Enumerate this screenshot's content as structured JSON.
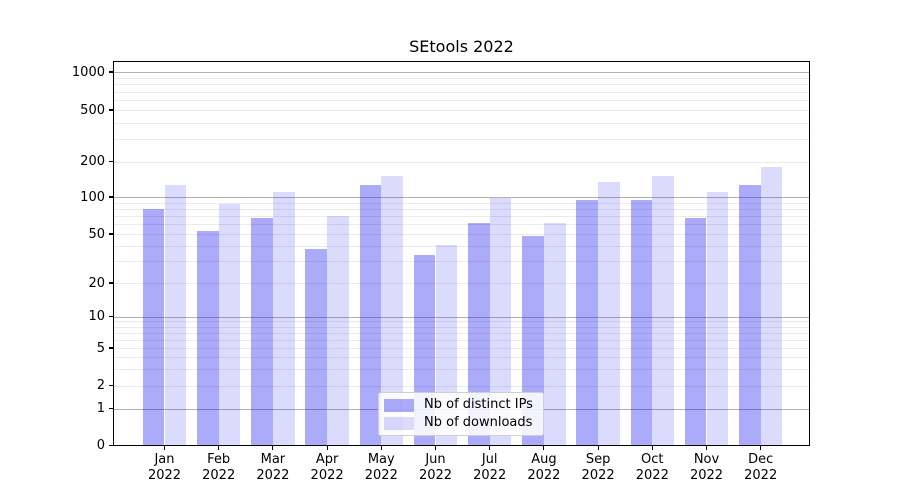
{
  "chart_data": {
    "type": "bar",
    "title": "SEtools 2022",
    "categories": [
      "Jan 2022",
      "Feb 2022",
      "Mar 2022",
      "Apr 2022",
      "May 2022",
      "Jun 2022",
      "Jul 2022",
      "Aug 2022",
      "Sep 2022",
      "Oct 2022",
      "Nov 2022",
      "Dec 2022"
    ],
    "series": [
      {
        "name": "Nb of distinct IPs",
        "color": "rgba(13,13,242,0.35)",
        "values": [
          80,
          53,
          67,
          38,
          127,
          34,
          62,
          48,
          94,
          95,
          67,
          126
        ]
      },
      {
        "name": "Nb of downloads",
        "color": "rgba(13,13,242,0.15)",
        "values": [
          127,
          87,
          110,
          70,
          150,
          41,
          99,
          62,
          134,
          152,
          110,
          180
        ]
      }
    ],
    "xlabel": "",
    "ylabel": "",
    "yscale": "symlog",
    "yticks": [
      0,
      1,
      2,
      5,
      10,
      20,
      50,
      100,
      200,
      500,
      1000
    ],
    "ylim": [
      0,
      1250
    ],
    "grid": true,
    "legend_position": "lower center"
  }
}
